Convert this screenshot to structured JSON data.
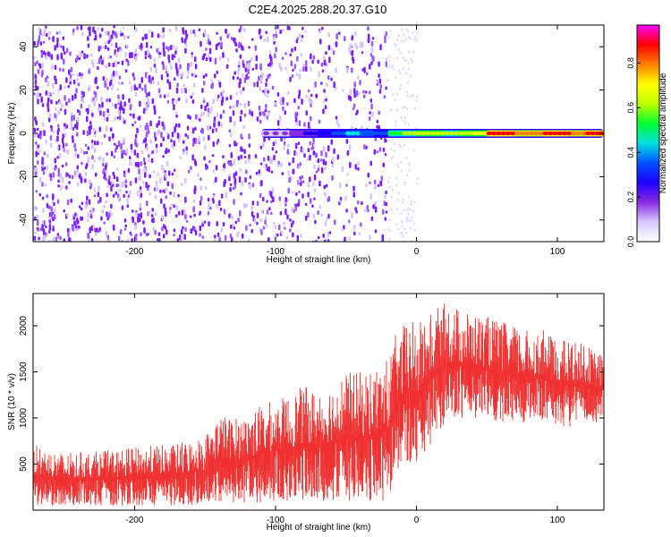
{
  "title": "C2E4.2025.288.20.37.G10",
  "chart_data": [
    {
      "type": "heatmap",
      "name": "spectrogram",
      "xlabel": "Height of straight line (km)",
      "ylabel": "Frequency (Hz)",
      "xlim": [
        -272,
        133
      ],
      "ylim": [
        -50,
        50
      ],
      "xticks": [
        -200,
        -100,
        0,
        100
      ],
      "yticks": [
        -40,
        -20,
        0,
        20,
        40
      ],
      "colorbar": {
        "label": "Normalized spectral amplitude",
        "range": [
          0.0,
          0.97
        ],
        "ticks": [
          0.0,
          0.2,
          0.4,
          0.6,
          0.8
        ],
        "colors": [
          "#ffffff",
          "#d8c8ff",
          "#8a2be2",
          "#1e00ff",
          "#0050ff",
          "#00e0e0",
          "#00ff30",
          "#c0ff00",
          "#ffff00",
          "#ff8000",
          "#ff0000",
          "#ff00ff"
        ]
      },
      "noise_region_km": [
        -272,
        -22
      ],
      "carrier_band": [
        {
          "x": -110,
          "amplitude": 0.1
        },
        {
          "x": -90,
          "amplitude": 0.15
        },
        {
          "x": -80,
          "amplitude": 0.22
        },
        {
          "x": -70,
          "amplitude": 0.25
        },
        {
          "x": -60,
          "amplitude": 0.3
        },
        {
          "x": -50,
          "amplitude": 0.4
        },
        {
          "x": -40,
          "amplitude": 0.35
        },
        {
          "x": -30,
          "amplitude": 0.3
        },
        {
          "x": -20,
          "amplitude": 0.45
        },
        {
          "x": -10,
          "amplitude": 0.55
        },
        {
          "x": 0,
          "amplitude": 0.6
        },
        {
          "x": 10,
          "amplitude": 0.6
        },
        {
          "x": 20,
          "amplitude": 0.55
        },
        {
          "x": 30,
          "amplitude": 0.6
        },
        {
          "x": 40,
          "amplitude": 0.65
        },
        {
          "x": 50,
          "amplitude": 0.8
        },
        {
          "x": 60,
          "amplitude": 0.8
        },
        {
          "x": 70,
          "amplitude": 0.75
        },
        {
          "x": 80,
          "amplitude": 0.75
        },
        {
          "x": 90,
          "amplitude": 0.8
        },
        {
          "x": 100,
          "amplitude": 0.85
        },
        {
          "x": 110,
          "amplitude": 0.75
        },
        {
          "x": 120,
          "amplitude": 0.85
        },
        {
          "x": 130,
          "amplitude": 0.8
        }
      ]
    },
    {
      "type": "line",
      "name": "snr",
      "xlabel": "Height of straight line (km)",
      "ylabel": "SNR (10 * v/v)",
      "xlim": [
        -272,
        133
      ],
      "ylim": [
        0,
        2350
      ],
      "xticks": [
        -200,
        -100,
        0,
        100
      ],
      "yticks": [
        500,
        1000,
        1500,
        2000
      ],
      "color": "#f03030",
      "envelope": [
        {
          "x": -270,
          "low": 50,
          "high": 700
        },
        {
          "x": -250,
          "low": 50,
          "high": 620
        },
        {
          "x": -230,
          "low": 50,
          "high": 640
        },
        {
          "x": -210,
          "low": 50,
          "high": 660
        },
        {
          "x": -190,
          "low": 50,
          "high": 700
        },
        {
          "x": -170,
          "low": 50,
          "high": 720
        },
        {
          "x": -150,
          "low": 60,
          "high": 820
        },
        {
          "x": -140,
          "low": 80,
          "high": 1050
        },
        {
          "x": -130,
          "low": 80,
          "high": 1000
        },
        {
          "x": -120,
          "low": 80,
          "high": 1050
        },
        {
          "x": -110,
          "low": 80,
          "high": 1150
        },
        {
          "x": -100,
          "low": 100,
          "high": 1200
        },
        {
          "x": -90,
          "low": 100,
          "high": 1250
        },
        {
          "x": -80,
          "low": 100,
          "high": 1350
        },
        {
          "x": -70,
          "low": 100,
          "high": 1300
        },
        {
          "x": -60,
          "low": 100,
          "high": 1400
        },
        {
          "x": -50,
          "low": 100,
          "high": 1500
        },
        {
          "x": -40,
          "low": 100,
          "high": 1500
        },
        {
          "x": -30,
          "low": 100,
          "high": 1550
        },
        {
          "x": -20,
          "low": 100,
          "high": 1650
        },
        {
          "x": -15,
          "low": 300,
          "high": 1900
        },
        {
          "x": -10,
          "low": 500,
          "high": 2000
        },
        {
          "x": -5,
          "low": 500,
          "high": 2100
        },
        {
          "x": 0,
          "low": 500,
          "high": 2000
        },
        {
          "x": 5,
          "low": 600,
          "high": 2100
        },
        {
          "x": 10,
          "low": 700,
          "high": 2150
        },
        {
          "x": 20,
          "low": 950,
          "high": 2250
        },
        {
          "x": 30,
          "low": 1000,
          "high": 2200
        },
        {
          "x": 40,
          "low": 1000,
          "high": 2150
        },
        {
          "x": 50,
          "low": 1000,
          "high": 2100
        },
        {
          "x": 60,
          "low": 950,
          "high": 2050
        },
        {
          "x": 70,
          "low": 950,
          "high": 2000
        },
        {
          "x": 80,
          "low": 950,
          "high": 1950
        },
        {
          "x": 90,
          "low": 950,
          "high": 1950
        },
        {
          "x": 100,
          "low": 900,
          "high": 1850
        },
        {
          "x": 110,
          "low": 900,
          "high": 1850
        },
        {
          "x": 120,
          "low": 950,
          "high": 1800
        },
        {
          "x": 130,
          "low": 950,
          "high": 1700
        }
      ]
    }
  ]
}
